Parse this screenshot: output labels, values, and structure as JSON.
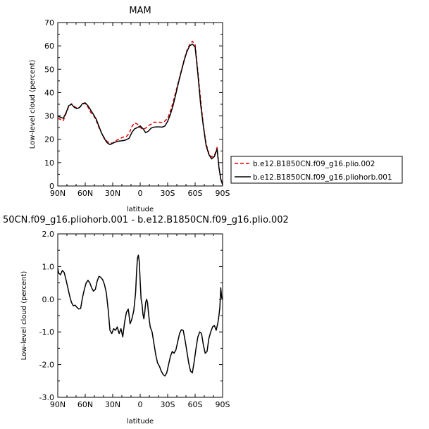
{
  "chart_data": [
    {
      "type": "line",
      "title": "MAM",
      "xlabel": "latitude",
      "ylabel": "Low-level cloud (percent)",
      "xlim": [
        90,
        -90
      ],
      "ylim": [
        0,
        70
      ],
      "xticks": [
        90,
        60,
        30,
        0,
        -30,
        -60,
        -90
      ],
      "xtick_labels": [
        "90N",
        "60N",
        "30N",
        "0",
        "30S",
        "60S",
        "90S"
      ],
      "yticks": [
        0,
        10,
        20,
        30,
        40,
        50,
        60,
        70
      ],
      "ytick_labels": [
        "0",
        "10",
        "20",
        "30",
        "40",
        "50",
        "60",
        "70"
      ],
      "legend": "right",
      "series": [
        {
          "name": "b.e12.B1850CN.f09_g16.plio.002",
          "color": "#e00000",
          "dash": "dashed",
          "x": [
            90,
            87,
            84,
            81,
            78,
            75,
            72,
            69,
            66,
            63,
            60,
            57,
            54,
            51,
            48,
            45,
            42,
            39,
            36,
            33,
            30,
            27,
            24,
            21,
            18,
            15,
            12,
            9,
            6,
            3,
            0,
            -3,
            -6,
            -9,
            -12,
            -15,
            -18,
            -21,
            -24,
            -27,
            -30,
            -33,
            -36,
            -39,
            -42,
            -45,
            -48,
            -51,
            -54,
            -57,
            -60,
            -63,
            -66,
            -69,
            -72,
            -75,
            -78,
            -81,
            -84,
            -86,
            -88,
            -90
          ],
          "y": [
            29,
            28.5,
            28,
            31,
            34,
            35.2,
            34,
            33.4,
            33.8,
            35,
            35.4,
            33.8,
            31.5,
            30.3,
            28,
            25,
            22.5,
            20.5,
            19,
            18.3,
            18.4,
            19.2,
            20,
            20.5,
            21,
            21.2,
            22.5,
            25.5,
            27,
            26.5,
            25,
            24.3,
            24.8,
            25.8,
            26.5,
            27.3,
            27.3,
            27.3,
            27.2,
            27.8,
            29,
            32,
            36,
            40.5,
            45,
            49.5,
            54,
            58,
            60.5,
            62,
            60.5,
            49,
            37,
            26,
            18,
            14,
            12.4,
            13,
            16.5,
            8,
            3,
            0.5
          ]
        },
        {
          "name": "b.e12.B1850CN.f09_g16.pliohorb.001",
          "color": "#000000",
          "dash": "solid",
          "x": [
            90,
            87,
            84,
            81,
            78,
            75,
            72,
            69,
            66,
            63,
            60,
            57,
            54,
            51,
            48,
            45,
            42,
            39,
            36,
            33,
            30,
            27,
            24,
            21,
            18,
            15,
            12,
            9,
            6,
            3,
            0,
            -3,
            -6,
            -9,
            -12,
            -15,
            -18,
            -21,
            -24,
            -27,
            -30,
            -33,
            -36,
            -39,
            -42,
            -45,
            -48,
            -51,
            -54,
            -57,
            -60,
            -63,
            -66,
            -69,
            -72,
            -75,
            -78,
            -81,
            -84,
            -86,
            -88,
            -90
          ],
          "y": [
            30,
            29.4,
            29,
            31.3,
            34.4,
            35,
            33.7,
            33.1,
            33.6,
            35.3,
            35.6,
            34.3,
            32.5,
            30.6,
            28.6,
            25.5,
            22.5,
            20.2,
            18.5,
            17.7,
            18.3,
            18.8,
            19.2,
            19.3,
            19.5,
            19.8,
            20.5,
            23,
            24.5,
            25,
            25.7,
            24.6,
            22.8,
            23.5,
            24.8,
            25.2,
            25.3,
            25.3,
            25.2,
            25.7,
            27.7,
            30.7,
            34.6,
            39.5,
            44.5,
            49.2,
            53.7,
            57.5,
            60,
            60.8,
            59.5,
            48,
            35,
            25.5,
            17.3,
            13.5,
            11.6,
            12.6,
            15.8,
            8,
            3,
            0.5
          ]
        }
      ]
    },
    {
      "type": "line",
      "title": "50CN.f09_g16.pliohorb.001 - b.e12.B1850CN.f09_g16.plio.002",
      "xlabel": "latitude",
      "ylabel": "Low-level cloud (percent)",
      "xlim": [
        90,
        -90
      ],
      "ylim": [
        -3,
        2
      ],
      "xticks": [
        90,
        60,
        30,
        0,
        -30,
        -60,
        -90
      ],
      "xtick_labels": [
        "90N",
        "60N",
        "30N",
        "0",
        "30S",
        "60S",
        "90S"
      ],
      "yticks": [
        -3,
        -2,
        -1,
        0,
        1,
        2
      ],
      "ytick_labels": [
        "-3.0",
        "-2.0",
        "-1.0",
        "0.0",
        "1.0",
        "2.0"
      ],
      "series": [
        {
          "color": "#000000",
          "dash": "solid",
          "x": [
            90,
            89,
            87,
            85,
            83,
            81,
            79,
            77,
            75,
            73,
            71,
            69,
            67,
            65,
            63,
            61,
            59,
            57,
            55,
            53,
            51,
            49,
            47,
            45,
            43,
            41,
            39,
            37,
            35,
            33,
            31,
            29,
            27,
            25,
            23,
            21,
            19,
            17,
            15,
            13,
            11,
            9,
            7,
            5,
            4,
            3,
            2,
            1,
            0,
            -1,
            -2,
            -3,
            -4,
            -5,
            -6,
            -7,
            -8,
            -9,
            -10,
            -11,
            -13,
            -15,
            -17,
            -19,
            -21,
            -23,
            -25,
            -27,
            -29,
            -31,
            -33,
            -35,
            -37,
            -39,
            -41,
            -43,
            -45,
            -47,
            -49,
            -51,
            -53,
            -55,
            -57,
            -59,
            -61,
            -63,
            -65,
            -67,
            -69,
            -71,
            -73,
            -75,
            -77,
            -79,
            -81,
            -83,
            -85,
            -86,
            -87,
            -88,
            -89,
            -90
          ],
          "y": [
            0.95,
            0.8,
            0.75,
            0.88,
            0.82,
            0.6,
            0.35,
            0.1,
            -0.1,
            -0.2,
            -0.18,
            -0.25,
            -0.3,
            -0.28,
            0.05,
            0.3,
            0.5,
            0.58,
            0.5,
            0.35,
            0.25,
            0.3,
            0.55,
            0.7,
            0.67,
            0.6,
            0.45,
            0.2,
            -0.3,
            -0.95,
            -1.05,
            -0.9,
            -0.95,
            -0.85,
            -1.05,
            -0.9,
            -1.15,
            -0.7,
            -0.4,
            -0.3,
            -0.75,
            -0.6,
            -0.35,
            0.2,
            0.8,
            1.25,
            1.35,
            1.15,
            0.55,
            0.0,
            -0.15,
            -0.45,
            -0.6,
            -0.4,
            -0.1,
            0.0,
            -0.1,
            -0.4,
            -0.65,
            -0.85,
            -1.0,
            -1.35,
            -1.7,
            -1.95,
            -2.05,
            -2.2,
            -2.3,
            -2.35,
            -2.25,
            -2.0,
            -1.75,
            -1.6,
            -1.65,
            -1.55,
            -1.3,
            -1.05,
            -0.93,
            -0.95,
            -1.25,
            -1.6,
            -1.95,
            -2.2,
            -2.25,
            -1.9,
            -1.5,
            -1.15,
            -1.0,
            -1.05,
            -1.4,
            -1.65,
            -1.6,
            -1.2,
            -1.0,
            -0.85,
            -0.8,
            -0.95,
            -0.7,
            -0.5,
            -0.25,
            0.35,
            0.05,
            0.0
          ]
        }
      ]
    }
  ]
}
